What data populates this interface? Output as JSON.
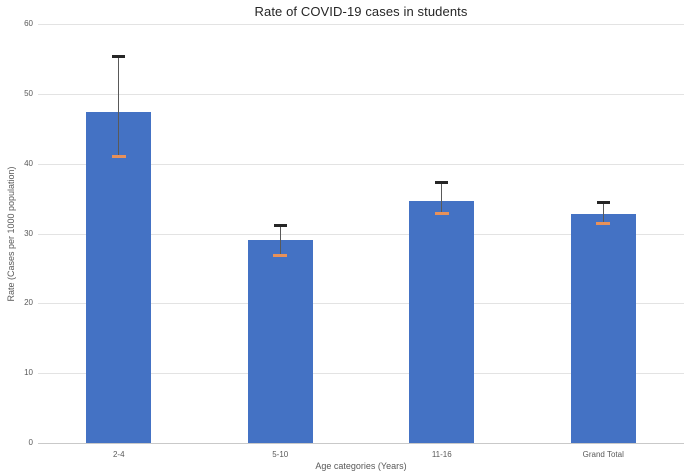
{
  "chart_data": {
    "type": "bar",
    "title": "Rate of COVID-19 cases in students",
    "xlabel": "Age categories (Years)",
    "ylabel": "Rate (Cases per 1000 population)",
    "categories": [
      "2-4",
      "5-10",
      "11-16",
      "Grand Total"
    ],
    "values": [
      47.4,
      29.0,
      34.7,
      32.8
    ],
    "error_upper": [
      55.3,
      31.1,
      37.3,
      34.4
    ],
    "error_lower": [
      41.0,
      26.8,
      32.8,
      31.5
    ],
    "ylim": [
      0,
      60
    ],
    "yticks": [
      0,
      10,
      20,
      30,
      40,
      50,
      60
    ],
    "grid": true,
    "legend": false,
    "colors": {
      "bar": "#4472C4",
      "error_line": "#595959",
      "error_cap_upper": "#262626",
      "error_cap_lower": "#E8915A",
      "gridline": "#E3E3E3",
      "axis_line": "#C9C9C9",
      "tick_text": "#595959",
      "title_text": "#262626"
    }
  }
}
